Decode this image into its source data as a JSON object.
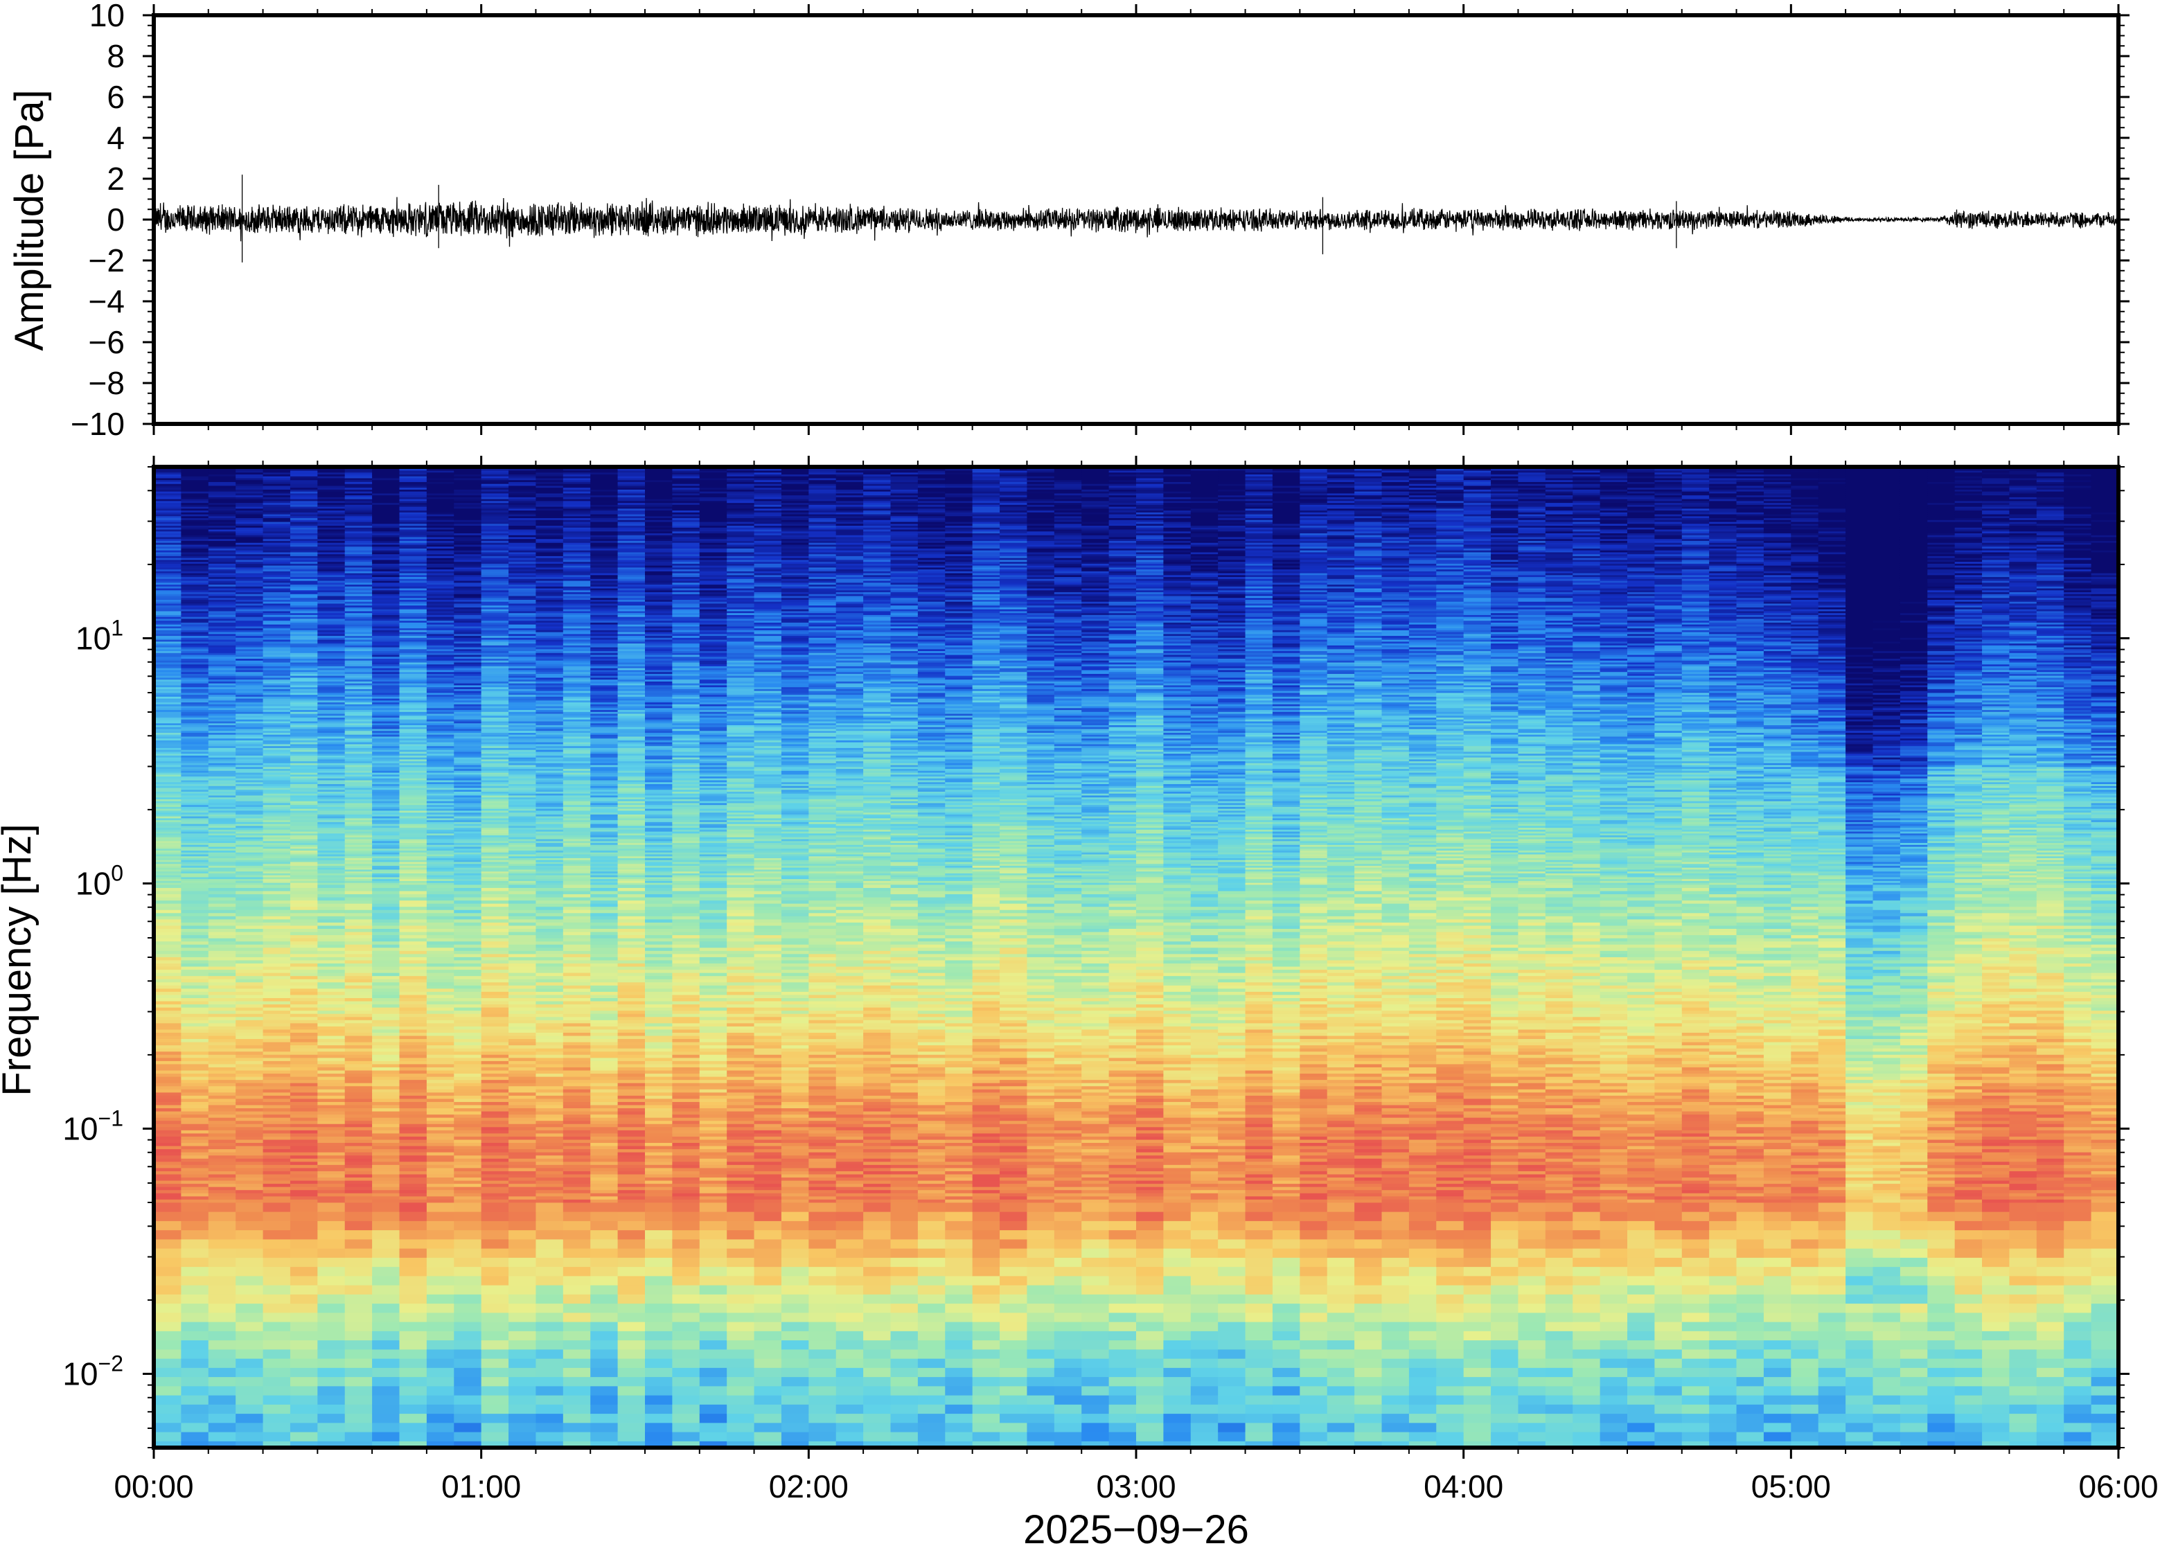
{
  "chart_data": [
    {
      "type": "line",
      "panel": "waveform",
      "ylabel": "Amplitude [Pa]",
      "ylim": [
        -10,
        10
      ],
      "yticks": [
        10,
        8,
        6,
        4,
        2,
        0,
        -2,
        -4,
        -6,
        -8,
        -10
      ],
      "ytick_labels": [
        "10",
        "8",
        "6",
        "4",
        "2",
        "0",
        "−2",
        "−4",
        "−6",
        "−8",
        "−10"
      ],
      "xlim_hours": [
        0,
        6
      ],
      "series": [
        {
          "values": "continuous noise trace centred on 0 Pa",
          "typical_envelope_pa": 0.7,
          "envelope_by_hour": [
            {
              "t": 0.0,
              "amp": 0.7
            },
            {
              "t": 0.5,
              "amp": 0.7
            },
            {
              "t": 1.0,
              "amp": 0.9
            },
            {
              "t": 1.5,
              "amp": 0.8
            },
            {
              "t": 2.0,
              "amp": 0.7
            },
            {
              "t": 2.5,
              "amp": 0.5
            },
            {
              "t": 3.0,
              "amp": 0.6
            },
            {
              "t": 3.5,
              "amp": 0.5
            },
            {
              "t": 4.0,
              "amp": 0.5
            },
            {
              "t": 4.5,
              "amp": 0.5
            },
            {
              "t": 5.0,
              "amp": 0.4
            },
            {
              "t": 5.2,
              "amp": 0.1
            },
            {
              "t": 5.45,
              "amp": 0.1
            },
            {
              "t": 5.5,
              "amp": 0.45
            },
            {
              "t": 6.0,
              "amp": 0.35
            }
          ],
          "spikes": [
            {
              "t": 0.27,
              "max": 2.2,
              "min": -2.1
            },
            {
              "t": 0.87,
              "max": 1.7,
              "min": -1.4
            },
            {
              "t": 3.57,
              "max": 1.1,
              "min": -1.7
            },
            {
              "t": 4.65,
              "max": 0.9,
              "min": -1.4
            }
          ]
        }
      ]
    },
    {
      "type": "heatmap",
      "panel": "spectrogram",
      "ylabel": "Frequency [Hz]",
      "yscale": "log",
      "ylim_hz": [
        0.005,
        50
      ],
      "yticks_hz": [
        10,
        1,
        0.1,
        0.01
      ],
      "ytick_labels": [
        {
          "base": "10",
          "exp": "1"
        },
        {
          "base": "10",
          "exp": "0"
        },
        {
          "base": "10",
          "exp": "−1"
        },
        {
          "base": "10",
          "exp": "−2"
        }
      ],
      "colormap": "rainbow (dark blue = low power, red = high power)",
      "colors": [
        "#0a0a6e",
        "#1432c8",
        "#2a8cf0",
        "#5fd2e8",
        "#9be8b4",
        "#e8f08c",
        "#f8c864",
        "#f08c50",
        "#e85550"
      ],
      "description_profile": [
        {
          "freq_hz": 40,
          "level": 0.02
        },
        {
          "freq_hz": 10,
          "level": 0.18
        },
        {
          "freq_hz": 3,
          "level": 0.35
        },
        {
          "freq_hz": 1,
          "level": 0.48
        },
        {
          "freq_hz": 0.3,
          "level": 0.65
        },
        {
          "freq_hz": 0.1,
          "level": 0.88
        },
        {
          "freq_hz": 0.05,
          "level": 0.9
        },
        {
          "freq_hz": 0.025,
          "level": 0.65
        },
        {
          "freq_hz": 0.012,
          "level": 0.45
        },
        {
          "freq_hz": 0.006,
          "level": 0.35
        }
      ],
      "quiet_interval_hours": [
        5.2,
        5.45
      ]
    }
  ],
  "x_axis": {
    "xlim_hours": [
      0,
      6
    ],
    "ticks": [
      "00:00",
      "01:00",
      "02:00",
      "03:00",
      "04:00",
      "05:00",
      "06:00"
    ],
    "date_label": "2025−09−26"
  }
}
